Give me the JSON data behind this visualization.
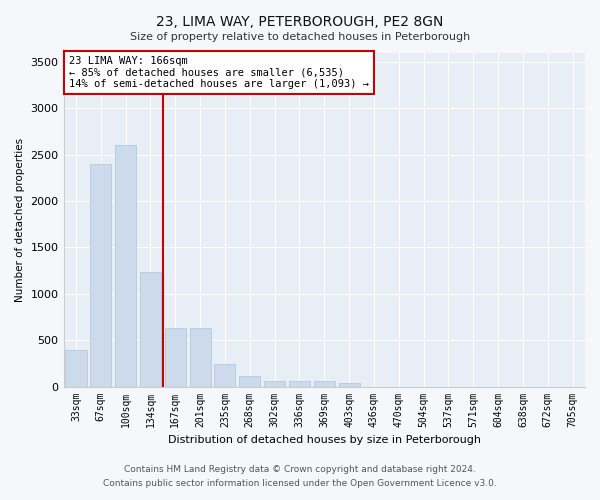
{
  "title": "23, LIMA WAY, PETERBOROUGH, PE2 8GN",
  "subtitle": "Size of property relative to detached houses in Peterborough",
  "xlabel": "Distribution of detached houses by size in Peterborough",
  "ylabel": "Number of detached properties",
  "categories": [
    "33sqm",
    "67sqm",
    "100sqm",
    "134sqm",
    "167sqm",
    "201sqm",
    "235sqm",
    "268sqm",
    "302sqm",
    "336sqm",
    "369sqm",
    "403sqm",
    "436sqm",
    "470sqm",
    "504sqm",
    "537sqm",
    "571sqm",
    "604sqm",
    "638sqm",
    "672sqm",
    "705sqm"
  ],
  "values": [
    390,
    2400,
    2600,
    1230,
    630,
    630,
    240,
    110,
    65,
    55,
    55,
    40,
    0,
    0,
    0,
    0,
    0,
    0,
    0,
    0,
    0
  ],
  "bar_color": "#ccdaeb",
  "bar_edge_color": "#b0c4d8",
  "vline_x_index": 4,
  "vline_color": "#cc0000",
  "annotation_text": "23 LIMA WAY: 166sqm\n← 85% of detached houses are smaller (6,535)\n14% of semi-detached houses are larger (1,093) →",
  "annotation_box_facecolor": "#ffffff",
  "annotation_box_edgecolor": "#cc0000",
  "ylim": [
    0,
    3600
  ],
  "yticks": [
    0,
    500,
    1000,
    1500,
    2000,
    2500,
    3000,
    3500
  ],
  "footer1": "Contains HM Land Registry data © Crown copyright and database right 2024.",
  "footer2": "Contains public sector information licensed under the Open Government Licence v3.0.",
  "bg_color": "#f5f7fa",
  "plot_bg_color": "#e8eef5",
  "grid_color": "#ffffff",
  "title_fontsize": 10,
  "subtitle_fontsize": 8,
  "xlabel_fontsize": 8,
  "ylabel_fontsize": 7.5,
  "tick_fontsize": 7,
  "annotation_fontsize": 7.5,
  "footer_fontsize": 6.5
}
